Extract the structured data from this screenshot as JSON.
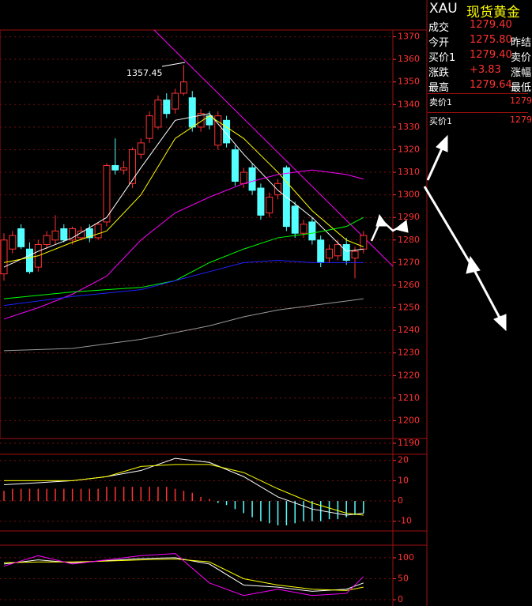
{
  "chart_data": [
    {
      "type": "candlestick",
      "annotation": "1357.45",
      "open": [
        1265,
        1276,
        1285,
        1276,
        1268,
        1278,
        1280,
        1285,
        1280,
        1281,
        1285,
        1281,
        1288,
        1313,
        1311,
        1305,
        1318,
        1325,
        1330,
        1342,
        1338,
        1345,
        1343,
        1330,
        1335,
        1322,
        1333,
        1320,
        1305,
        1312,
        1303,
        1292,
        1300,
        1312,
        1295,
        1283,
        1288,
        1280,
        1272,
        1273,
        1278,
        1272,
        1276
      ],
      "high": [
        1283,
        1284,
        1287,
        1279,
        1280,
        1284,
        1291,
        1287,
        1286,
        1286,
        1287,
        1288,
        1314,
        1325,
        1315,
        1321,
        1325,
        1337,
        1344,
        1345,
        1347,
        1357.45,
        1346,
        1338,
        1337,
        1337,
        1335,
        1322,
        1312,
        1314,
        1305,
        1301,
        1307,
        1313,
        1297,
        1289,
        1290,
        1282,
        1278,
        1280,
        1281,
        1277,
        1284
      ],
      "low": [
        1262,
        1274,
        1276,
        1265,
        1266,
        1276,
        1278,
        1279,
        1278,
        1280,
        1279,
        1280,
        1286,
        1309,
        1309,
        1303,
        1316,
        1323,
        1329,
        1334,
        1336,
        1344,
        1328,
        1328,
        1329,
        1320,
        1321,
        1304,
        1303,
        1300,
        1289,
        1290,
        1298,
        1284,
        1281,
        1281,
        1278,
        1268,
        1270,
        1271,
        1269,
        1263,
        1274
      ],
      "close": [
        1280,
        1282,
        1277,
        1266,
        1278,
        1282,
        1284,
        1280,
        1285,
        1284,
        1281,
        1287,
        1313,
        1311,
        1312,
        1320,
        1323,
        1335,
        1342,
        1336,
        1345,
        1350,
        1330,
        1336,
        1331,
        1335,
        1323,
        1306,
        1310,
        1302,
        1291,
        1299,
        1305,
        1286,
        1283,
        1287,
        1280,
        1270,
        1276,
        1278,
        1271,
        1275,
        1282
      ],
      "up_color": "#ff3232",
      "down_color": "#54ffff",
      "lines": [
        {
          "color": "#ffffff",
          "x": [
            0,
            4,
            8,
            12,
            16,
            20,
            24,
            28,
            32,
            36,
            40,
            42
          ],
          "values": [
            1268,
            1275,
            1281,
            1290,
            1312,
            1333,
            1336,
            1318,
            1302,
            1290,
            1275,
            1276
          ]
        },
        {
          "color": "#ffff00",
          "x": [
            0,
            4,
            8,
            12,
            16,
            20,
            24,
            28,
            32,
            36,
            40,
            42
          ],
          "values": [
            1270,
            1273,
            1279,
            1284,
            1300,
            1325,
            1335,
            1325,
            1310,
            1293,
            1280,
            1277
          ]
        },
        {
          "color": "#ff00ff",
          "x": [
            0,
            4,
            8,
            12,
            16,
            20,
            24,
            28,
            32,
            36,
            40,
            42
          ],
          "values": [
            1245,
            1250,
            1256,
            1264,
            1280,
            1292,
            1299,
            1305,
            1309,
            1311,
            1309,
            1307
          ]
        },
        {
          "color": "#00ff00",
          "x": [
            0,
            8,
            16,
            20,
            24,
            28,
            32,
            36,
            40,
            42
          ],
          "values": [
            1254,
            1257,
            1259,
            1262,
            1270,
            1276,
            1281,
            1283,
            1286,
            1290
          ]
        },
        {
          "color": "#2020ff",
          "x": [
            0,
            8,
            16,
            20,
            24,
            28,
            32,
            36,
            40,
            42
          ],
          "values": [
            1251,
            1255,
            1258,
            1262,
            1266,
            1270,
            1271,
            1270,
            1270,
            1270
          ]
        },
        {
          "color": "#999999",
          "x": [
            0,
            8,
            16,
            20,
            24,
            28,
            32,
            36,
            40,
            42
          ],
          "values": [
            1231,
            1232,
            1236,
            1239,
            1242,
            1246,
            1249,
            1251,
            1253,
            1254
          ]
        }
      ],
      "ylim": [
        1190,
        1373
      ],
      "yticks": [
        1190,
        1200,
        1210,
        1220,
        1230,
        1240,
        1250,
        1260,
        1270,
        1280,
        1290,
        1300,
        1310,
        1320,
        1330,
        1340,
        1350,
        1360,
        1370
      ],
      "grid": true
    },
    {
      "type": "macd",
      "values": [
        5,
        6,
        6,
        6,
        6,
        6,
        6,
        6,
        6,
        6,
        6,
        6,
        7,
        7,
        7,
        7,
        7,
        7,
        7,
        7,
        6,
        5,
        4,
        2,
        1,
        -1,
        -2,
        -4,
        -6,
        -8,
        -10,
        -11,
        -12,
        -12,
        -11,
        -10,
        -10,
        -10,
        -9,
        -9,
        -8,
        -7,
        -6
      ],
      "up_color": "#ff3232",
      "down_color": "#54ffff",
      "lines": [
        {
          "color": "#ffffff",
          "x": [
            0,
            4,
            8,
            12,
            16,
            20,
            24,
            28,
            32,
            36,
            40,
            42
          ],
          "values": [
            8,
            9,
            10,
            12,
            15,
            21,
            19,
            12,
            2,
            -4,
            -7,
            -6
          ]
        },
        {
          "color": "#ffff00",
          "x": [
            0,
            8,
            12,
            16,
            20,
            24,
            28,
            32,
            36,
            40,
            42
          ],
          "values": [
            10,
            10,
            12,
            17,
            18,
            18,
            14,
            6,
            -1,
            -6,
            -7
          ]
        }
      ],
      "ylim": [
        -14,
        23
      ],
      "yticks": [
        20,
        10,
        0,
        -10
      ],
      "grid": true
    },
    {
      "type": "kdj",
      "lines": [
        {
          "color": "#ffffff",
          "x": [
            0,
            4,
            8,
            12,
            16,
            20,
            24,
            28,
            32,
            36,
            40,
            42
          ],
          "values": [
            85,
            95,
            88,
            93,
            98,
            100,
            85,
            35,
            30,
            20,
            25,
            40
          ]
        },
        {
          "color": "#ffff00",
          "x": [
            0,
            4,
            8,
            12,
            16,
            20,
            24,
            28,
            32,
            36,
            40,
            42
          ],
          "values": [
            88,
            90,
            90,
            92,
            95,
            97,
            90,
            50,
            35,
            25,
            22,
            30
          ]
        },
        {
          "color": "#ff00ff",
          "x": [
            0,
            4,
            8,
            12,
            16,
            20,
            24,
            28,
            32,
            36,
            40,
            42
          ],
          "values": [
            80,
            105,
            85,
            95,
            105,
            110,
            40,
            10,
            25,
            10,
            15,
            55
          ]
        }
      ],
      "ylim": [
        -15,
        130
      ],
      "yticks": [
        0,
        50,
        100
      ],
      "grid": true
    }
  ],
  "quote_panel": {
    "symbol": "XAU",
    "name": "现货黄金",
    "rows": [
      [
        "成交",
        "1279.40",
        ""
      ],
      [
        "今开",
        "1275.80",
        "昨结"
      ],
      [
        "买价1",
        "1279.40",
        "卖价"
      ],
      [
        "涨跌",
        "+3.83",
        "涨幅"
      ],
      [
        "最高",
        "1279.64",
        "最低"
      ]
    ],
    "book": [
      [
        "卖价1",
        "1279"
      ],
      [
        "买价1",
        "1279"
      ]
    ]
  }
}
